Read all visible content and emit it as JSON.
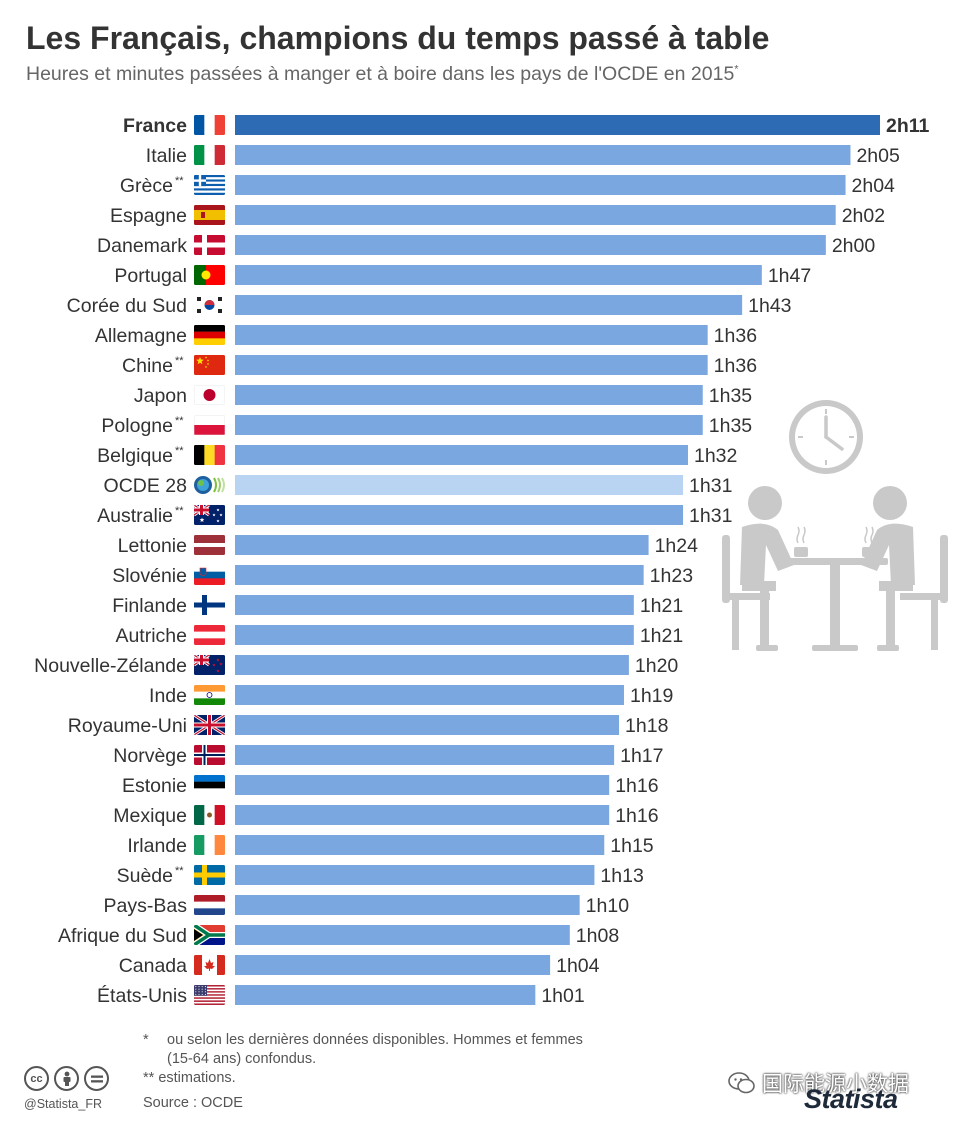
{
  "title": "Les Français, champions du temps passé à table",
  "subtitle": "Heures et minutes passées à manger et à boire dans les pays de l'OCDE en 2015",
  "subtitle_mark": "*",
  "chart_data": {
    "type": "bar",
    "orientation": "horizontal",
    "unit": "minutes",
    "categories": [
      "France",
      "Italie",
      "Grèce**",
      "Espagne",
      "Danemark",
      "Portugal",
      "Corée du Sud",
      "Allemagne",
      "Chine**",
      "Japon",
      "Pologne**",
      "Belgique**",
      "OCDE 28",
      "Australie**",
      "Lettonie",
      "Slovénie",
      "Finlande",
      "Autriche",
      "Nouvelle-Zélande",
      "Inde",
      "Royaume-Uni",
      "Norvège",
      "Estonie",
      "Mexique",
      "Irlande",
      "Suède**",
      "Pays-Bas",
      "Afrique du Sud",
      "Canada",
      "États-Unis"
    ],
    "values": [
      131,
      125,
      124,
      122,
      120,
      107,
      103,
      96,
      96,
      95,
      95,
      92,
      91,
      91,
      84,
      83,
      81,
      81,
      80,
      79,
      78,
      77,
      76,
      76,
      75,
      73,
      70,
      68,
      64,
      61
    ],
    "value_labels": [
      "2h11",
      "2h05",
      "2h04",
      "2h02",
      "2h00",
      "1h47",
      "1h43",
      "1h36",
      "1h36",
      "1h35",
      "1h35",
      "1h32",
      "1h31",
      "1h31",
      "1h24",
      "1h23",
      "1h21",
      "1h21",
      "1h20",
      "1h19",
      "1h18",
      "1h17",
      "1h16",
      "1h16",
      "1h15",
      "1h13",
      "1h10",
      "1h08",
      "1h04",
      "1h01"
    ],
    "flags": [
      "fr",
      "it",
      "gr",
      "es",
      "dk",
      "pt",
      "kr",
      "de",
      "cn",
      "jp",
      "pl",
      "be",
      "oecd",
      "au",
      "lv",
      "si",
      "fi",
      "at",
      "nz",
      "in",
      "gb",
      "no",
      "ee",
      "mx",
      "ie",
      "se",
      "nl",
      "za",
      "ca",
      "us"
    ],
    "highlight": "France",
    "reference": "OCDE 28",
    "colors": {
      "default": "#7aa7e0",
      "highlight": "#2d6cb5",
      "reference": "#b9d3f2"
    },
    "xlim": [
      0,
      131
    ],
    "grid": false,
    "legend": "none"
  },
  "footnotes": {
    "star_mark": "*",
    "star_line1": "ou selon les dernières données disponibles. Hommes et femmes",
    "star_line2": "(15-64 ans) confondus.",
    "double_star": "** estimations.",
    "source": "Source : OCDE"
  },
  "branding": {
    "handle": "@Statista_FR",
    "logo": "Statista",
    "watermark": "国际能源小数据",
    "cc_icons": [
      "cc",
      "by",
      "nd"
    ]
  },
  "illustration": {
    "icons": [
      "clock-icon",
      "diners-at-table-icon"
    ]
  }
}
